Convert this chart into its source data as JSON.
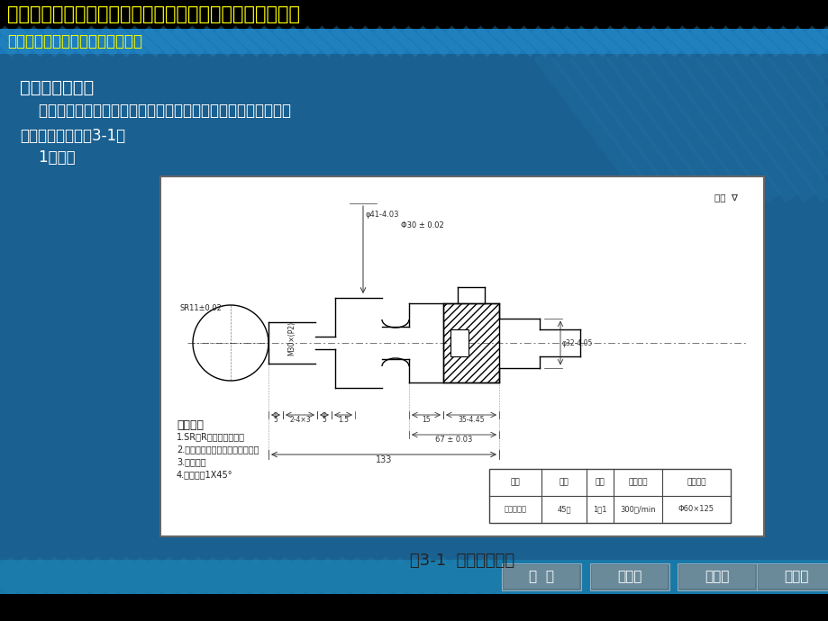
{
  "title_text": "浙江工业职业技术学院《数控机床操作技能实训》精品课程",
  "subtitle_text": "数控车中级技能实训理论教学模块",
  "title_bg": "#000000",
  "title_fg": "#FFFF00",
  "subtitle_fg": "#FFFF00",
  "subtitle_bar_color": "#1a7ab5",
  "main_bg_top": "#1a5f8a",
  "main_bg_mid": "#1a6fa0",
  "heading1": "二、新课讲授：",
  "heading1_bold": true,
  "body1": "    下面双头螺纹加工为例，分析螺纹车削的工艺和加工注意事项。",
  "heading2": "（一）课题七（图3-1）",
  "heading3": "    1、图纸",
  "text_color": "#FFFFFF",
  "caption": "图3-1  双头螺纹加工",
  "caption_color": "#222222",
  "bottom_bar_color": "#1a7aaa",
  "nav_buttons": [
    "首  页",
    "上一页",
    "下一页",
    "最后页"
  ],
  "nav_btn_bg": "#7090a0",
  "nav_btn_fg": "#FFFFFF",
  "drawing_bg": "#FFFFFF",
  "drawing_border": "#555555",
  "shaft_color": "#000000",
  "dim_color": "#333333"
}
